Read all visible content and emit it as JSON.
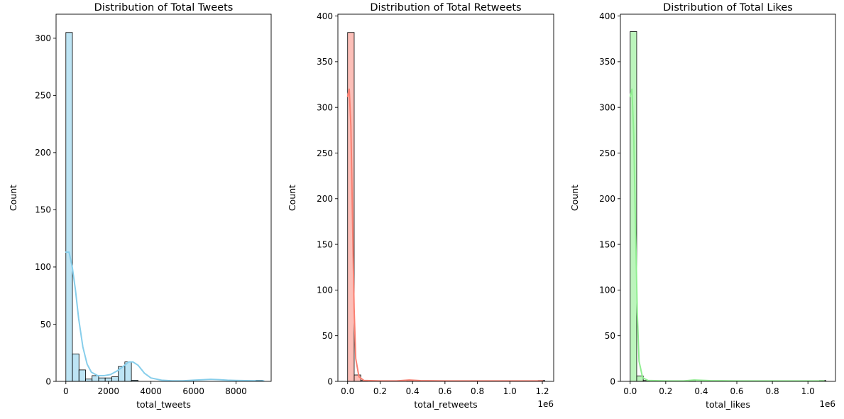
{
  "chart_data": [
    {
      "type": "bar",
      "title": "Distribution of Total Tweets",
      "xlabel": "total_tweets",
      "ylabel": "Count",
      "x_offset_label": "",
      "xlim": [
        -460,
        9650
      ],
      "ylim": [
        0,
        321
      ],
      "xticks": [
        0,
        2000,
        4000,
        6000,
        8000
      ],
      "xtick_labels": [
        "0",
        "2000",
        "4000",
        "6000",
        "8000"
      ],
      "yticks": [
        0,
        50,
        100,
        150,
        200,
        250,
        300
      ],
      "ytick_labels": [
        "0",
        "50",
        "100",
        "150",
        "200",
        "250",
        "300"
      ],
      "bin_start": 0,
      "bin_width": 308,
      "counts": [
        305,
        24,
        10,
        2,
        5,
        3,
        3,
        4,
        13,
        17,
        1,
        0,
        0,
        0,
        0,
        0,
        0,
        0,
        0,
        0,
        0,
        0,
        0,
        0,
        0,
        0,
        0,
        0,
        0,
        1
      ],
      "kde_x": [
        0,
        150,
        300,
        450,
        600,
        800,
        1000,
        1200,
        1500,
        1800,
        2100,
        2400,
        2700,
        2950,
        3150,
        3400,
        3700,
        4000,
        4500,
        5000,
        5500,
        6000,
        6500,
        6800,
        7200,
        7600,
        8000,
        8500,
        9000,
        9300
      ],
      "kde_y": [
        113,
        113,
        100,
        80,
        55,
        30,
        15,
        8,
        5,
        5,
        6,
        9,
        13,
        17,
        17,
        14,
        7,
        3,
        1,
        0.5,
        0.5,
        1,
        1.5,
        1.8,
        1.5,
        1,
        0.8,
        0.6,
        0.5,
        0.5
      ],
      "colors": {
        "fill": "#87ceeb",
        "fill_opacity": 0.55,
        "line": "#87ceeb"
      }
    },
    {
      "type": "bar",
      "title": "Distribution of Total Retweets",
      "xlabel": "total_retweets",
      "ylabel": "Count",
      "x_offset_label": "1e6",
      "xlim": [
        -0.06,
        1.27
      ],
      "ylim": [
        0,
        402
      ],
      "xticks": [
        0,
        0.2,
        0.4,
        0.6,
        0.8,
        1.0,
        1.2
      ],
      "xtick_labels": [
        "0.0",
        "0.2",
        "0.4",
        "0.6",
        "0.8",
        "1.0",
        "1.2"
      ],
      "yticks": [
        0,
        50,
        100,
        150,
        200,
        250,
        300,
        350,
        400
      ],
      "ytick_labels": [
        "0",
        "50",
        "100",
        "150",
        "200",
        "250",
        "300",
        "350",
        "400"
      ],
      "bin_start": 0,
      "bin_width": 0.0405,
      "counts": [
        382,
        7,
        1,
        0,
        0,
        0,
        0,
        0,
        0,
        1,
        0,
        0,
        0,
        0,
        0,
        0,
        0,
        0,
        0,
        0,
        0,
        0,
        0,
        0,
        0,
        0,
        0,
        0,
        0,
        1
      ],
      "kde_x": [
        0,
        0.01,
        0.02,
        0.03,
        0.04,
        0.05,
        0.07,
        0.1,
        0.2,
        0.3,
        0.38,
        0.45,
        0.6,
        0.8,
        1.0,
        1.1,
        1.2
      ],
      "kde_y": [
        312,
        320,
        280,
        180,
        80,
        25,
        5,
        1,
        0.5,
        0.5,
        1.5,
        0.8,
        0.5,
        0.5,
        0.5,
        0.5,
        0.5
      ],
      "colors": {
        "fill": "#fa8072",
        "fill_opacity": 0.5,
        "line": "#fa8072"
      }
    },
    {
      "type": "bar",
      "title": "Distribution of Total Likes",
      "xlabel": "total_likes",
      "ylabel": "Count",
      "x_offset_label": "1e6",
      "xlim": [
        -0.055,
        1.155
      ],
      "ylim": [
        0,
        402
      ],
      "xticks": [
        0,
        0.2,
        0.4,
        0.6,
        0.8,
        1.0
      ],
      "xtick_labels": [
        "0.0",
        "0.2",
        "0.4",
        "0.6",
        "0.8",
        "1.0"
      ],
      "yticks": [
        0,
        50,
        100,
        150,
        200,
        250,
        300,
        350,
        400
      ],
      "ytick_labels": [
        "0",
        "50",
        "100",
        "150",
        "200",
        "250",
        "300",
        "350",
        "400"
      ],
      "bin_start": 0,
      "bin_width": 0.0367,
      "counts": [
        383,
        6,
        1,
        0,
        0,
        0,
        0,
        0,
        0,
        1,
        0,
        0,
        0,
        0,
        0,
        0,
        0,
        0,
        0,
        0,
        0,
        0,
        0,
        0,
        0,
        0,
        0,
        0,
        0,
        1
      ],
      "kde_x": [
        0,
        0.01,
        0.02,
        0.03,
        0.04,
        0.05,
        0.07,
        0.1,
        0.2,
        0.3,
        0.36,
        0.45,
        0.6,
        0.8,
        1.0,
        1.09
      ],
      "kde_y": [
        312,
        320,
        270,
        170,
        75,
        22,
        4,
        1,
        0.5,
        0.5,
        1.5,
        0.8,
        0.5,
        0.5,
        0.5,
        0.5
      ],
      "colors": {
        "fill": "#90ee90",
        "fill_opacity": 0.6,
        "line": "#90ee90"
      }
    }
  ]
}
